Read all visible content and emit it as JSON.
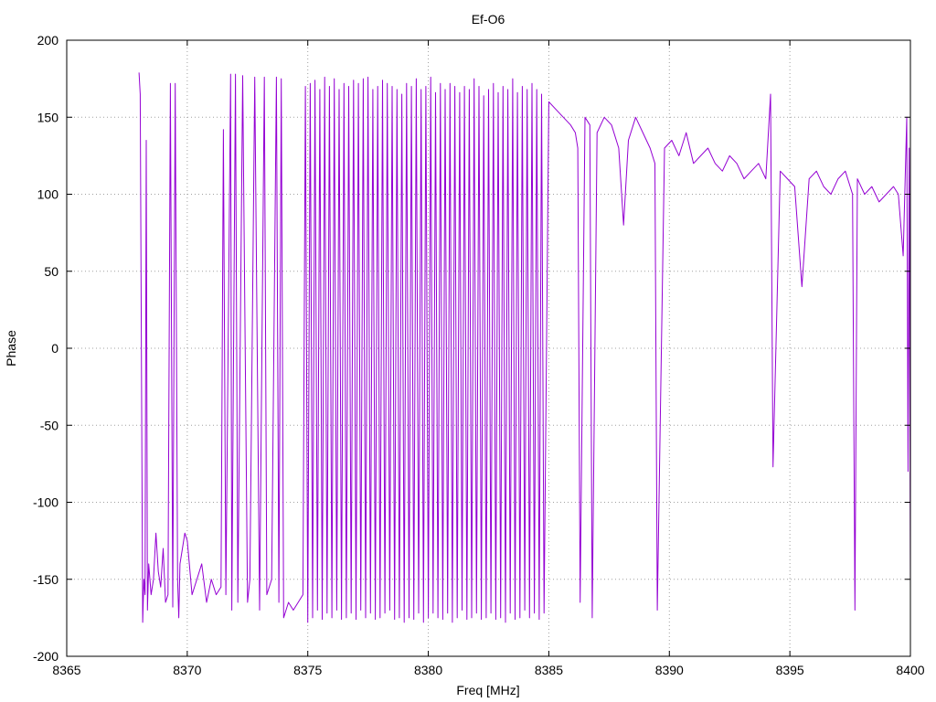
{
  "chart_data": {
    "type": "line",
    "title": "Ef-O6",
    "xlabel": "Freq [MHz]",
    "ylabel": "Phase",
    "xlim": [
      8365,
      8400
    ],
    "ylim": [
      -200,
      200
    ],
    "xticks": [
      8365,
      8370,
      8375,
      8380,
      8385,
      8390,
      8395,
      8400
    ],
    "yticks": [
      -200,
      -150,
      -100,
      -50,
      0,
      50,
      100,
      150,
      200
    ],
    "grid": true,
    "legend": "none",
    "series": [
      {
        "color": "#9400d3",
        "x": [
          8368.0,
          8368.05,
          8368.1,
          8368.15,
          8368.2,
          8368.25,
          8368.3,
          8368.35,
          8368.4,
          8368.5,
          8368.6,
          8368.7,
          8368.8,
          8368.9,
          8369.0,
          8369.1,
          8369.2,
          8369.3,
          8369.4,
          8369.45,
          8369.5,
          8369.6,
          8369.65,
          8369.7,
          8369.8,
          8369.9,
          8370.0,
          8370.2,
          8370.4,
          8370.6,
          8370.8,
          8371.0,
          8371.2,
          8371.4,
          8371.5,
          8371.6,
          8371.8,
          8371.85,
          8372.0,
          8372.1,
          8372.3,
          8372.5,
          8372.6,
          8372.8,
          8373.0,
          8373.2,
          8373.3,
          8373.5,
          8373.7,
          8373.8,
          8373.9,
          8374.0,
          8374.2,
          8374.4,
          8374.6,
          8374.8,
          8374.9,
          8375.0,
          8375.1,
          8375.2,
          8375.3,
          8375.4,
          8375.5,
          8375.6,
          8375.7,
          8375.8,
          8375.9,
          8376.0,
          8376.1,
          8376.2,
          8376.3,
          8376.4,
          8376.5,
          8376.6,
          8376.7,
          8376.8,
          8376.9,
          8377.0,
          8377.1,
          8377.2,
          8377.3,
          8377.4,
          8377.5,
          8377.6,
          8377.7,
          8377.8,
          8377.9,
          8378.0,
          8378.1,
          8378.2,
          8378.3,
          8378.4,
          8378.5,
          8378.6,
          8378.7,
          8378.8,
          8378.9,
          8379.0,
          8379.1,
          8379.2,
          8379.3,
          8379.4,
          8379.5,
          8379.6,
          8379.7,
          8379.8,
          8379.9,
          8380.0,
          8380.1,
          8380.2,
          8380.3,
          8380.4,
          8380.5,
          8380.6,
          8380.7,
          8380.8,
          8380.9,
          8381.0,
          8381.1,
          8381.2,
          8381.3,
          8381.4,
          8381.5,
          8381.6,
          8381.7,
          8381.8,
          8381.9,
          8382.0,
          8382.1,
          8382.2,
          8382.3,
          8382.4,
          8382.5,
          8382.6,
          8382.7,
          8382.8,
          8382.9,
          8383.0,
          8383.1,
          8383.2,
          8383.3,
          8383.4,
          8383.5,
          8383.6,
          8383.7,
          8383.8,
          8383.9,
          8384.0,
          8384.1,
          8384.2,
          8384.3,
          8384.4,
          8384.5,
          8384.6,
          8384.7,
          8384.8,
          8385.0,
          8385.3,
          8385.6,
          8385.9,
          8386.1,
          8386.2,
          8386.3,
          8386.5,
          8386.7,
          8386.8,
          8387.0,
          8387.3,
          8387.6,
          8387.9,
          8388.1,
          8388.3,
          8388.6,
          8388.9,
          8389.2,
          8389.4,
          8389.5,
          8389.8,
          8390.1,
          8390.4,
          8390.7,
          8391.0,
          8391.3,
          8391.6,
          8391.9,
          8392.2,
          8392.5,
          8392.8,
          8393.1,
          8393.4,
          8393.7,
          8394.0,
          8394.2,
          8394.3,
          8394.6,
          8394.9,
          8395.2,
          8395.5,
          8395.8,
          8396.1,
          8396.4,
          8396.7,
          8397.0,
          8397.3,
          8397.6,
          8397.7,
          8397.8,
          8398.1,
          8398.4,
          8398.7,
          8399.0,
          8399.3,
          8399.5,
          8399.7,
          8399.85,
          8399.9,
          8399.95,
          8400.0
        ],
        "y": [
          179,
          165,
          -16,
          -178,
          -150,
          -160,
          135,
          -170,
          -140,
          -160,
          -150,
          -120,
          -145,
          -155,
          -130,
          -165,
          -160,
          172,
          -168,
          10,
          172,
          -150,
          -175,
          -140,
          -130,
          -120,
          -125,
          -160,
          -150,
          -140,
          -165,
          -150,
          -160,
          -155,
          142,
          -160,
          178,
          -170,
          178,
          -165,
          177,
          -165,
          -150,
          176,
          -170,
          176,
          -160,
          -150,
          176,
          -165,
          175,
          -175,
          -165,
          -170,
          -165,
          -160,
          170,
          -178,
          172,
          -175,
          174,
          -170,
          168,
          -176,
          176,
          -172,
          170,
          -175,
          175,
          -170,
          168,
          -176,
          172,
          -175,
          170,
          -172,
          174,
          -176,
          172,
          -170,
          175,
          -175,
          176,
          -172,
          168,
          -176,
          170,
          -175,
          174,
          -172,
          172,
          -170,
          170,
          -176,
          168,
          -175,
          165,
          -178,
          172,
          -175,
          170,
          -176,
          175,
          -172,
          168,
          -178,
          170,
          -175,
          176,
          -172,
          166,
          -175,
          172,
          -176,
          168,
          -172,
          172,
          -178,
          170,
          -175,
          166,
          -170,
          170,
          -176,
          168,
          -175,
          175,
          -172,
          170,
          -176,
          164,
          -175,
          168,
          -172,
          172,
          -176,
          166,
          -175,
          170,
          -178,
          168,
          -172,
          175,
          -176,
          166,
          -175,
          170,
          -170,
          168,
          -175,
          172,
          -172,
          168,
          -176,
          165,
          -172,
          160,
          155,
          150,
          145,
          140,
          130,
          -165,
          150,
          145,
          -175,
          140,
          150,
          145,
          130,
          80,
          135,
          150,
          140,
          130,
          120,
          -170,
          130,
          135,
          125,
          140,
          120,
          125,
          130,
          120,
          115,
          125,
          120,
          110,
          115,
          120,
          110,
          165,
          -77,
          115,
          110,
          105,
          40,
          110,
          115,
          105,
          100,
          110,
          115,
          100,
          -170,
          110,
          100,
          105,
          95,
          100,
          105,
          100,
          60,
          150,
          -80,
          130,
          -155
        ]
      }
    ]
  }
}
